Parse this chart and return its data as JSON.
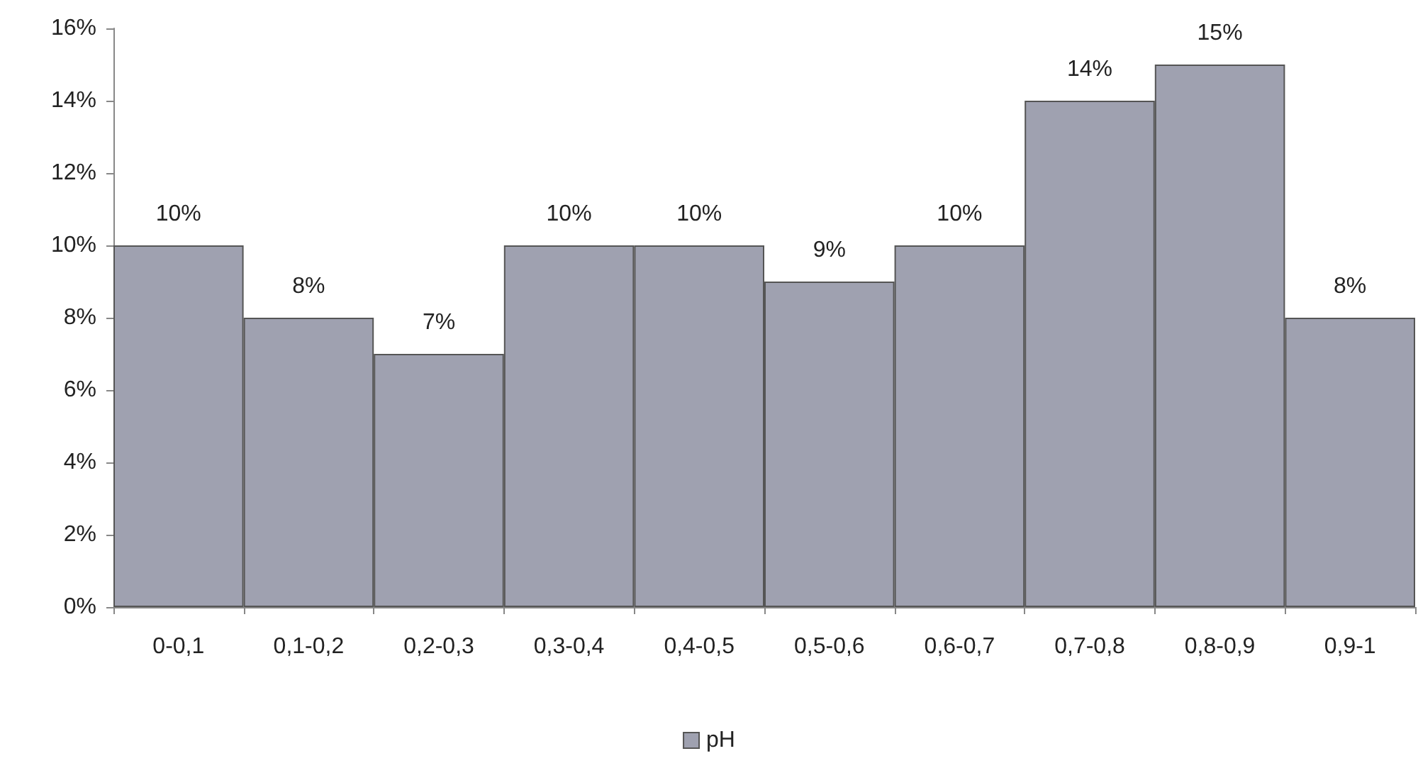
{
  "chart_data": {
    "type": "bar",
    "categories": [
      "0-0,1",
      "0,1-0,2",
      "0,2-0,3",
      "0,3-0,4",
      "0,4-0,5",
      "0,5-0,6",
      "0,6-0,7",
      "0,7-0,8",
      "0,8-0,9",
      "0,9-1"
    ],
    "series": [
      {
        "name": "pH",
        "color": "#9fa1b0",
        "values": [
          10,
          8,
          7,
          10,
          10,
          9,
          10,
          14,
          15,
          8
        ],
        "value_labels": [
          "10%",
          "8%",
          "7%",
          "10%",
          "10%",
          "9%",
          "10%",
          "14%",
          "15%",
          "8%"
        ]
      }
    ],
    "ylim": [
      0,
      16
    ],
    "yticks": [
      {
        "value": 0,
        "label": "0%"
      },
      {
        "value": 2,
        "label": "2%"
      },
      {
        "value": 4,
        "label": "4%"
      },
      {
        "value": 6,
        "label": "6%"
      },
      {
        "value": 8,
        "label": "8%"
      },
      {
        "value": 10,
        "label": "10%"
      },
      {
        "value": 12,
        "label": "12%"
      },
      {
        "value": 14,
        "label": "14%"
      },
      {
        "value": 16,
        "label": "16%"
      }
    ],
    "grid": false,
    "legend": "bottom"
  }
}
